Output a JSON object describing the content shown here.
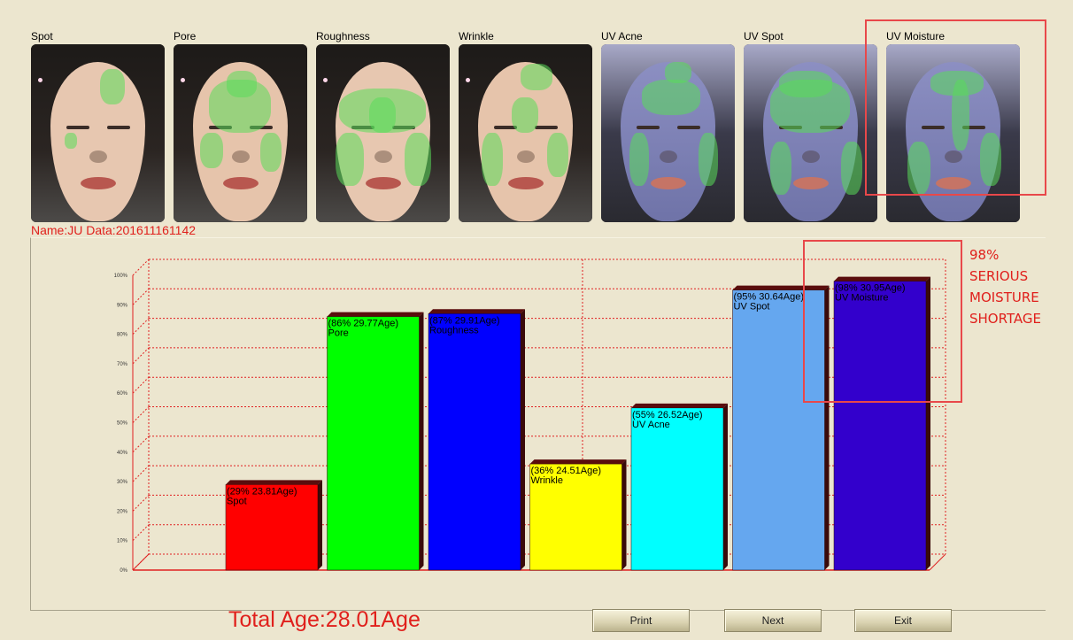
{
  "thumbnails": [
    {
      "label": "Spot",
      "uv": false
    },
    {
      "label": "Pore",
      "uv": false
    },
    {
      "label": "Roughness",
      "uv": false
    },
    {
      "label": "Wrinkle",
      "uv": false
    },
    {
      "label": "UV Acne",
      "uv": true
    },
    {
      "label": "UV Spot",
      "uv": true
    },
    {
      "label": "UV Moisture",
      "uv": true
    }
  ],
  "name_line": "Name:JU Data:201611161142",
  "annotation": "98%\nSERIOUS\nMOISTURE\nSHORTAGE",
  "total_age": "Total Age:28.01Age",
  "buttons": {
    "print": "Print",
    "next": "Next",
    "exit": "Exit"
  },
  "colors": {
    "accent_red": "#e0201c",
    "background": "#ece6cf"
  },
  "chart_data": {
    "type": "bar",
    "categories": [
      "Spot",
      "Pore",
      "Roughness",
      "Wrinkle",
      "UV Acne",
      "UV Spot",
      "UV Moisture"
    ],
    "values": [
      29,
      86,
      87,
      36,
      55,
      95,
      98
    ],
    "data_labels": [
      "(29% 23.81Age)",
      "(86% 29.77Age)",
      "(87% 29.91Age)",
      "(36% 24.51Age)",
      "(55% 26.52Age)",
      "(95% 30.64Age)",
      "(98% 30.95Age)"
    ],
    "bar_colors": [
      "#ff0000",
      "#00ff00",
      "#0000ff",
      "#ffff00",
      "#00ffff",
      "#65a7ef",
      "#3300cc"
    ],
    "yticks": [
      "0%",
      "10%",
      "20%",
      "30%",
      "40%",
      "50%",
      "60%",
      "70%",
      "80%",
      "90%",
      "100%"
    ],
    "ylim": [
      0,
      100
    ],
    "grid": true
  }
}
